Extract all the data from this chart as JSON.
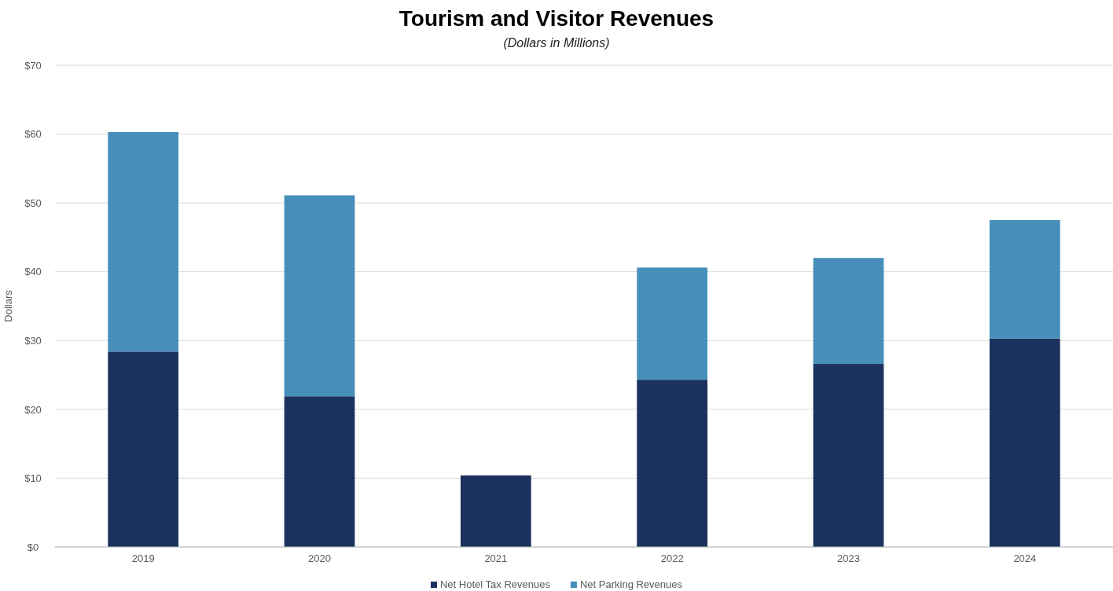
{
  "chart_data": {
    "type": "bar",
    "title": "Tourism and Visitor Revenues",
    "subtitle": "(Dollars in Millions)",
    "ylabel": "Dollars",
    "categories": [
      "2019",
      "2020",
      "2021",
      "2022",
      "2023",
      "2024"
    ],
    "series": [
      {
        "name": "Net Hotel Tax Revenues",
        "color": "#1c325e",
        "values": [
          28.4,
          21.9,
          10.4,
          24.3,
          26.6,
          30.3
        ]
      },
      {
        "name": "Net Parking Revenues",
        "color": "#468fba",
        "values": [
          31.9,
          29.2,
          0,
          16.3,
          15.4,
          17.2
        ]
      }
    ],
    "stacked": true,
    "ylim": [
      0,
      70
    ],
    "yticks": [
      {
        "value": 0,
        "label": "$0"
      },
      {
        "value": 10,
        "label": "$10"
      },
      {
        "value": 20,
        "label": "$20"
      },
      {
        "value": 30,
        "label": "$30"
      },
      {
        "value": 40,
        "label": "$40"
      },
      {
        "value": 50,
        "label": "$50"
      },
      {
        "value": 60,
        "label": "$60"
      },
      {
        "value": 70,
        "label": "$70"
      }
    ],
    "grid": "y",
    "legend": "bottom"
  }
}
